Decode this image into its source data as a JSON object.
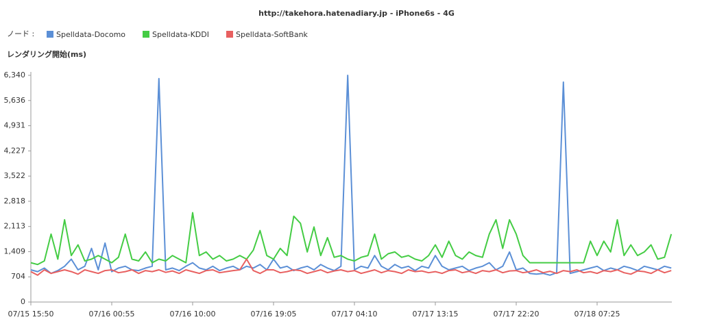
{
  "chart_data": {
    "type": "line",
    "title": "http://takehora.hatenadiary.jp - iPhone6s - 4G",
    "legend_label": "ノード :",
    "y_axis_label": "レンダリング開始(ms)",
    "categories": [
      "07/15 15:50",
      null,
      null,
      null,
      null,
      null,
      null,
      null,
      null,
      null,
      null,
      null,
      "07/16 00:55",
      null,
      null,
      null,
      null,
      null,
      null,
      null,
      null,
      null,
      null,
      null,
      "07/16 10:00",
      null,
      null,
      null,
      null,
      null,
      null,
      null,
      null,
      null,
      null,
      null,
      "07/16 19:05",
      null,
      null,
      null,
      null,
      null,
      null,
      null,
      null,
      null,
      null,
      null,
      "07/17 04:10",
      null,
      null,
      null,
      null,
      null,
      null,
      null,
      null,
      null,
      null,
      null,
      "07/17 13:15",
      null,
      null,
      null,
      null,
      null,
      null,
      null,
      null,
      null,
      null,
      null,
      "07/17 22:20",
      null,
      null,
      null,
      null,
      null,
      null,
      null,
      null,
      null,
      null,
      null,
      "07/18 07:25",
      null,
      null,
      null,
      null,
      null,
      null,
      null,
      null,
      null,
      null,
      null
    ],
    "series": [
      {
        "name": "Spelldata-Docomo",
        "color": "#5b8fd6",
        "values": [
          900,
          850,
          950,
          800,
          880,
          1000,
          1200,
          900,
          1000,
          1500,
          900,
          1650,
          850,
          950,
          1000,
          900,
          880,
          950,
          1000,
          6250,
          900,
          950,
          880,
          1000,
          1100,
          950,
          900,
          1000,
          880,
          950,
          1000,
          900,
          1000,
          950,
          1050,
          900,
          1200,
          950,
          1000,
          880,
          950,
          1000,
          900,
          1050,
          950,
          880,
          1000,
          6340,
          900,
          1000,
          950,
          1300,
          1000,
          900,
          1050,
          950,
          1000,
          880,
          1000,
          950,
          1300,
          1000,
          900,
          950,
          1000,
          880,
          950,
          1000,
          1100,
          900,
          1000,
          1400,
          900,
          950,
          800,
          780,
          800,
          750,
          820,
          6150,
          800,
          850,
          900,
          950,
          1000,
          880,
          950,
          900,
          1000,
          950,
          880,
          1000,
          950,
          900,
          1000,
          950
        ]
      },
      {
        "name": "Spelldata-KDDI",
        "color": "#44cc44",
        "values": [
          1100,
          1050,
          1150,
          1900,
          1200,
          2300,
          1300,
          1600,
          1150,
          1200,
          1300,
          1200,
          1100,
          1250,
          1900,
          1200,
          1150,
          1400,
          1100,
          1200,
          1150,
          1300,
          1200,
          1100,
          2500,
          1300,
          1400,
          1200,
          1300,
          1150,
          1200,
          1300,
          1200,
          1450,
          2000,
          1300,
          1200,
          1500,
          1300,
          2400,
          2200,
          1400,
          2100,
          1300,
          1800,
          1250,
          1300,
          1200,
          1150,
          1250,
          1300,
          1900,
          1200,
          1350,
          1400,
          1250,
          1300,
          1200,
          1150,
          1300,
          1600,
          1250,
          1700,
          1300,
          1200,
          1400,
          1300,
          1250,
          1900,
          2300,
          1500,
          2300,
          1900,
          1300,
          1100,
          1100,
          1100,
          1100,
          1100,
          1100,
          1100,
          1100,
          1100,
          1700,
          1300,
          1700,
          1400,
          2300,
          1300,
          1600,
          1300,
          1400,
          1600,
          1200,
          1250,
          1900
        ]
      },
      {
        "name": "Spelldata-SoftBank",
        "color": "#e86060",
        "values": [
          850,
          750,
          900,
          800,
          850,
          900,
          850,
          780,
          900,
          850,
          800,
          880,
          900,
          820,
          850,
          900,
          800,
          880,
          850,
          900,
          830,
          870,
          800,
          900,
          850,
          800,
          880,
          900,
          820,
          850,
          880,
          900,
          1200,
          880,
          800,
          900,
          900,
          820,
          850,
          900,
          880,
          800,
          850,
          900,
          820,
          870,
          900,
          850,
          880,
          800,
          850,
          900,
          820,
          880,
          850,
          800,
          900,
          850,
          870,
          820,
          850,
          800,
          880,
          900,
          820,
          860,
          800,
          880,
          850,
          900,
          820,
          870,
          880,
          820,
          850,
          900,
          820,
          860,
          800,
          880,
          850,
          900,
          820,
          850,
          800,
          880,
          850,
          900,
          820,
          780,
          870,
          850,
          800,
          900,
          820,
          880
        ]
      }
    ],
    "ylim": [
      0,
      6340
    ],
    "yticks": [
      0,
      704,
      {
        "value": 1409,
        "label": "1,409"
      },
      {
        "value": 2113,
        "label": "2,113"
      },
      {
        "value": 2818,
        "label": "2,818"
      },
      {
        "value": 3522,
        "label": "3,522"
      },
      {
        "value": 4227,
        "label": "4,227"
      },
      {
        "value": 4931,
        "label": "4,931"
      },
      {
        "value": 5636,
        "label": "5,636"
      },
      {
        "value": 6340,
        "label": "6,340"
      }
    ],
    "grid": false
  }
}
